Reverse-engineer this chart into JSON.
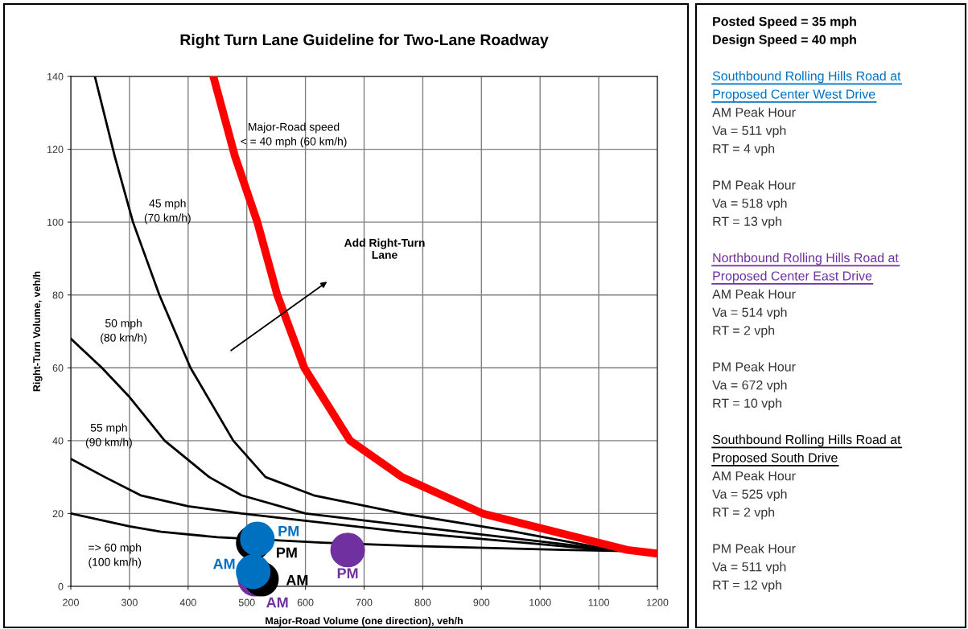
{
  "chart_data": [
    {
      "type": "line",
      "title": "Right Turn Lane Guideline for Two-Lane Roadway",
      "xlabel": "Major-Road Volume (one direction), veh/h",
      "ylabel": "Right-Turn Volume, veh/h",
      "xlim": [
        200,
        1200
      ],
      "ylim": [
        0,
        140
      ],
      "xticks": [
        200,
        300,
        400,
        500,
        600,
        700,
        800,
        900,
        1000,
        1100,
        1200
      ],
      "yticks": [
        0,
        20,
        40,
        60,
        80,
        100,
        120,
        140
      ],
      "grid": true,
      "marker": "none",
      "series": [
        {
          "name": "45 mph\n(70 km/h)",
          "color": "#000000",
          "x": [
            241,
            275,
            306,
            351,
            404,
            477,
            532,
            614,
            765,
            957,
            1122,
            1200
          ],
          "values": [
            140,
            118,
            100,
            80,
            60,
            40,
            30,
            25,
            20,
            15,
            10,
            9.5
          ]
        },
        {
          "name": "50 mph\n(80 km/h)",
          "color": "#000000",
          "x": [
            200,
            253,
            300,
            360,
            436,
            491,
            600,
            861,
            1122,
            1200
          ],
          "values": [
            68,
            60,
            52,
            40,
            30,
            25,
            20,
            15,
            10,
            9.5
          ]
        },
        {
          "name": "55 mph\n(90 km/h)",
          "color": "#000000",
          "x": [
            200,
            258,
            319,
            400,
            491,
            765,
            1108,
            1200
          ],
          "values": [
            35,
            30,
            25,
            22,
            20,
            15,
            10,
            9.5
          ]
        },
        {
          "name": "=> 60 mph\n(100 km/h)",
          "color": "#000000",
          "x": [
            200,
            300,
            354,
            450,
            628,
            800,
            1040,
            1200
          ],
          "values": [
            20,
            16.5,
            15,
            13.5,
            12,
            11,
            10,
            9.5
          ]
        },
        {
          "name": "Major-Road speed\n< = 40 mph (60 km/h)",
          "color": "#ff0000",
          "x": [
            443,
            480,
            518,
            552,
            598,
            676,
            765,
            902,
            1149,
            1200
          ],
          "values": [
            140,
            118,
            100,
            80,
            60,
            40,
            30,
            20,
            10,
            9
          ]
        },
        {
          "type": "scatter",
          "marker": "circle",
          "color": "#7030a0",
          "x": [
            514,
            672
          ],
          "values": [
            2,
            10
          ],
          "value_labels": [
            "AM",
            "PM"
          ]
        },
        {
          "type": "scatter",
          "marker": "circle",
          "color": "#000000",
          "x": [
            525,
            511
          ],
          "values": [
            2,
            12
          ],
          "value_labels": [
            "AM",
            "PM"
          ]
        },
        {
          "type": "scatter",
          "marker": "circle",
          "color": "#0070c0",
          "x": [
            511,
            518
          ],
          "values": [
            4,
            13
          ],
          "value_labels": [
            "AM",
            "PM"
          ]
        }
      ],
      "annotations": [
        "Add Right-Turn\nLane"
      ]
    },
    {
      "type": "other",
      "annotations": [
        "Posted Speed = 35 mph\nDesign Speed = 40 mph",
        "Southbound Rolling Hills Road at\nProposed Center West Drive",
        "AM Peak Hour\nVa = 511 vph\nRT = 4 vph",
        "PM Peak Hour\nVa = 518 vph\nRT = 13 vph",
        "Northbound Rolling Hills Road at\nProposed Center East Drive",
        "AM Peak Hour\nVa = 514 vph\nRT = 2 vph",
        "PM Peak Hour\nVa = 672 vph\nRT = 10 vph",
        "Southbound Rolling Hills Road at\nProposed South Drive",
        "AM Peak Hour\nVa = 525 vph\nRT = 2 vph",
        "PM Peak Hour\nVa = 511 vph\nRT = 12 vph"
      ],
      "colors": [
        null,
        "#0070c0",
        null,
        null,
        "#7030a0",
        null,
        null,
        "#000000",
        null,
        null
      ]
    }
  ]
}
